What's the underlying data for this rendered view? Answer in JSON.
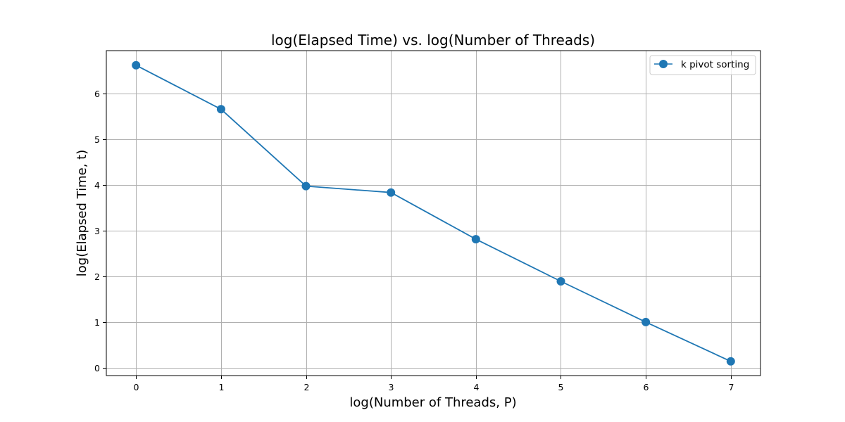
{
  "chart_data": {
    "type": "line",
    "title": "log(Elapsed Time) vs. log(Number of Threads)",
    "xlabel": "log(Number of Threads, P)",
    "ylabel": "log(Elapsed Time, t)",
    "x": [
      0,
      1,
      2,
      3,
      4,
      5,
      6,
      7
    ],
    "xlim": [
      -0.35,
      7.35
    ],
    "ylim": [
      -0.17,
      6.93
    ],
    "x_ticks": [
      0,
      1,
      2,
      3,
      4,
      5,
      6,
      7
    ],
    "y_ticks": [
      0,
      1,
      2,
      3,
      4,
      5,
      6
    ],
    "grid": true,
    "legend_position": "top-right",
    "series": [
      {
        "name": "k pivot sorting",
        "color": "#1f77b4",
        "marker": "circle",
        "values": [
          6.61,
          5.65,
          3.97,
          3.83,
          2.81,
          1.89,
          1.0,
          0.14
        ]
      }
    ]
  }
}
